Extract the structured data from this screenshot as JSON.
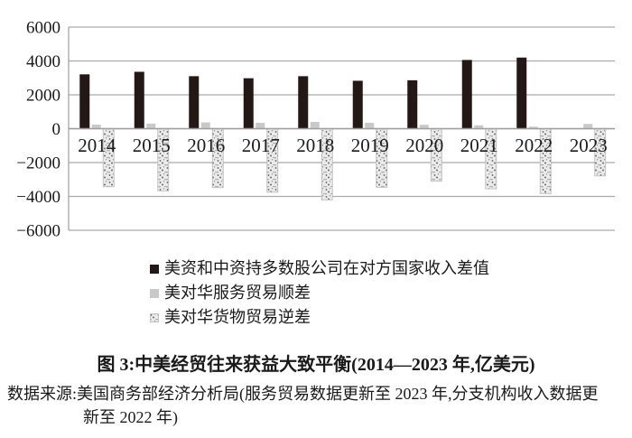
{
  "title": "图 3:中美经贸往来获益大致平衡(2014—2023 年,亿美元)",
  "source_line1": "数据来源:美国商务部经济分析局(服务贸易数据更新至 2023 年,分支机构收入数据更",
  "source_line2": "新至 2022 年)",
  "colors": {
    "bar_dark": "#231815",
    "bar_gray": "#c9c9c9",
    "bar_speckle_bg": "#ebebeb",
    "bar_speckle_stroke": "#b8b8b8",
    "gridline": "#ababab",
    "axis": "#9e9e9e",
    "text": "#1a1a1a"
  },
  "chart_data": {
    "type": "bar",
    "title": "图 3:中美经贸往来获益大致平衡(2014—2023 年,亿美元)",
    "categories": [
      "2014",
      "2015",
      "2016",
      "2017",
      "2018",
      "2019",
      "2020",
      "2021",
      "2022",
      "2023"
    ],
    "series": [
      {
        "key": "income-gap",
        "name": "美资和中资持多数股公司在对方国家收入差值",
        "style": "solid",
        "color": "#231815",
        "values": [
          3210,
          3360,
          3100,
          2980,
          3100,
          2830,
          2860,
          4060,
          4200,
          null
        ]
      },
      {
        "key": "services-surplus",
        "name": "美对华服务贸易顺差",
        "style": "solid",
        "color": "#c9c9c9",
        "values": [
          240,
          300,
          370,
          350,
          400,
          350,
          230,
          200,
          120,
          280
        ]
      },
      {
        "key": "goods-deficit",
        "name": "美对华货物贸易逆差",
        "style": "speckle",
        "color": "#ebebeb",
        "values": [
          -3430,
          -3670,
          -3480,
          -3750,
          -4200,
          -3460,
          -3100,
          -3550,
          -3830,
          -2790
        ]
      }
    ],
    "ylim": [
      -6000,
      6000
    ],
    "yticks": [
      {
        "v": 6000,
        "label": "6000"
      },
      {
        "v": 4000,
        "label": "4000"
      },
      {
        "v": 2000,
        "label": "2000"
      },
      {
        "v": 0,
        "label": "0"
      },
      {
        "v": -2000,
        "label": "−2000"
      },
      {
        "v": -4000,
        "label": "−4000"
      },
      {
        "v": -6000,
        "label": "−6000"
      }
    ],
    "grid": true,
    "legend_position": "below-left",
    "xlabel": "",
    "ylabel": ""
  }
}
